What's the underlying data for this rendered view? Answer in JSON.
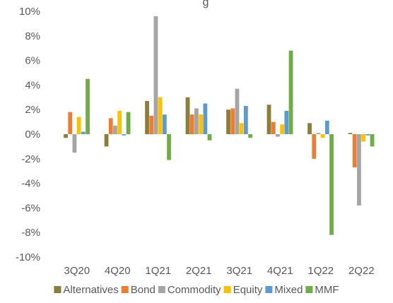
{
  "chart_data": {
    "type": "bar",
    "title": "",
    "title_visible_fragment": "g",
    "xlabel": "",
    "ylabel": "",
    "categories": [
      "3Q20",
      "4Q20",
      "1Q21",
      "2Q21",
      "3Q21",
      "4Q21",
      "1Q22",
      "2Q22"
    ],
    "ylim": [
      -0.1,
      0.1
    ],
    "ytick_values": [
      -0.1,
      -0.08,
      -0.06,
      -0.04,
      -0.02,
      0,
      0.02,
      0.04,
      0.06,
      0.08,
      0.1
    ],
    "ytick_labels": [
      "-10%",
      "-8%",
      "-6%",
      "-4%",
      "-2%",
      "0%",
      "2%",
      "4%",
      "6%",
      "8%",
      "10%"
    ],
    "grid": false,
    "legend_position": "bottom",
    "series": [
      {
        "name": "Alternatives",
        "color": "#8B7D3A",
        "values": [
          -0.003,
          -0.01,
          0.027,
          0.03,
          0.02,
          0.024,
          0.009,
          0.001
        ]
      },
      {
        "name": "Bond",
        "color": "#ED7D31",
        "values": [
          0.018,
          0.013,
          0.015,
          0.016,
          0.021,
          0.01,
          -0.02,
          -0.027
        ]
      },
      {
        "name": "Commodity",
        "color": "#A5A5A5",
        "values": [
          -0.015,
          0.007,
          0.096,
          0.021,
          0.037,
          -0.002,
          0.001,
          -0.058
        ]
      },
      {
        "name": "Equity",
        "color": "#FFC000",
        "values": [
          0.014,
          0.019,
          0.03,
          0.016,
          0.009,
          0.008,
          -0.003,
          -0.006
        ]
      },
      {
        "name": "Mixed",
        "color": "#5B9BD5",
        "values": [
          0.002,
          -0.001,
          0.016,
          0.025,
          0.023,
          0.019,
          0.011,
          -0.001
        ]
      },
      {
        "name": "MMF",
        "color": "#70AD47",
        "values": [
          0.045,
          0.018,
          -0.021,
          -0.005,
          -0.003,
          0.068,
          -0.082,
          -0.01
        ]
      }
    ]
  }
}
